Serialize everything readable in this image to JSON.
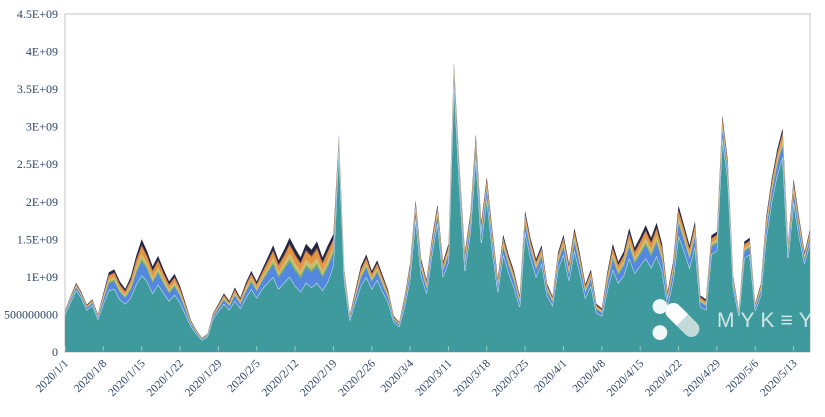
{
  "page": {
    "background": "#ffffff"
  },
  "watermark": {
    "text": "MYKEY",
    "display": "MYK≡Y"
  },
  "chart_data": {
    "type": "area",
    "stacked": true,
    "title": "",
    "xlabel": "",
    "ylabel": "",
    "grid": false,
    "legend": "none",
    "plot_border_color": "#c6c6c6",
    "axis_label_color": "#2e4468",
    "tick_mark_color": "rgba(255,255,255,0.45)",
    "separator_line_color": "rgba(255,255,255,0.85)",
    "y_axis": {
      "min": 0,
      "max": 4500000000,
      "tick_labels": [
        "0",
        "500000000",
        "1E+09",
        "1.5E+09",
        "2E+09",
        "2.5E+09",
        "3E+09",
        "3.5E+09",
        "4E+09",
        "4.5E+09"
      ]
    },
    "x_axis": {
      "tick_labels": [
        "2020/1/1",
        "2020/1/8",
        "2020/1/15",
        "2020/1/22",
        "2020/1/29",
        "2020/2/5",
        "2020/2/12",
        "2020/2/19",
        "2020/2/26",
        "2020/3/4",
        "2020/3/11",
        "2020/3/18",
        "2020/3/25",
        "2020/4/1",
        "2020/4/8",
        "2020/4/15",
        "2020/4/22",
        "2020/4/29",
        "2020/5/6",
        "2020/5/13"
      ],
      "tick_day_indices": [
        0,
        7,
        14,
        21,
        28,
        35,
        42,
        49,
        56,
        63,
        70,
        77,
        84,
        91,
        98,
        105,
        112,
        119,
        126,
        133
      ]
    },
    "values_unit_multiplier": 1000000000,
    "n_points": 137,
    "series": [
      {
        "name": "teal",
        "color": "#3f9a9e",
        "separator_on_top": true,
        "values": [
          0.5,
          0.66,
          0.82,
          0.72,
          0.56,
          0.62,
          0.44,
          0.64,
          0.82,
          0.84,
          0.7,
          0.64,
          0.72,
          0.9,
          1.02,
          0.94,
          0.78,
          0.9,
          0.78,
          0.68,
          0.76,
          0.66,
          0.5,
          0.34,
          0.24,
          0.16,
          0.2,
          0.44,
          0.54,
          0.64,
          0.56,
          0.68,
          0.58,
          0.72,
          0.84,
          0.72,
          0.84,
          0.92,
          1.0,
          0.84,
          0.92,
          1.0,
          0.88,
          0.8,
          0.92,
          0.86,
          0.92,
          0.82,
          0.94,
          1.15,
          2.72,
          0.94,
          0.42,
          0.66,
          0.88,
          1.0,
          0.84,
          0.96,
          0.8,
          0.66,
          0.4,
          0.34,
          0.6,
          0.98,
          1.78,
          1.02,
          0.78,
          1.3,
          1.72,
          1.0,
          1.2,
          3.6,
          2.2,
          1.08,
          1.6,
          2.6,
          1.45,
          2.05,
          1.35,
          0.8,
          1.3,
          1.05,
          0.85,
          0.6,
          1.6,
          1.25,
          1.0,
          1.18,
          0.75,
          0.62,
          1.1,
          1.3,
          0.95,
          1.35,
          1.05,
          0.72,
          0.88,
          0.52,
          0.48,
          0.82,
          1.1,
          0.92,
          1.02,
          1.25,
          1.05,
          1.15,
          1.25,
          1.12,
          1.28,
          1.08,
          0.62,
          0.95,
          1.55,
          1.35,
          1.12,
          1.4,
          0.6,
          0.56,
          1.3,
          1.35,
          2.85,
          2.3,
          0.85,
          0.48,
          1.25,
          1.3,
          0.55,
          0.75,
          1.52,
          2.0,
          2.35,
          2.6,
          1.25,
          2.0,
          1.55,
          1.18,
          1.45
        ]
      },
      {
        "name": "cornflower-blue",
        "color": "#5488df",
        "values": [
          0.02,
          0.032,
          0.04,
          0.032,
          0.028,
          0.032,
          0.024,
          0.056,
          0.096,
          0.104,
          0.096,
          0.08,
          0.112,
          0.152,
          0.192,
          0.16,
          0.144,
          0.152,
          0.128,
          0.104,
          0.112,
          0.088,
          0.06,
          0.032,
          0.02,
          0.012,
          0.016,
          0.028,
          0.04,
          0.056,
          0.048,
          0.072,
          0.056,
          0.08,
          0.096,
          0.088,
          0.104,
          0.136,
          0.168,
          0.152,
          0.176,
          0.208,
          0.2,
          0.184,
          0.208,
          0.2,
          0.22,
          0.176,
          0.192,
          0.168,
          0.072,
          0.056,
          0.032,
          0.064,
          0.104,
          0.12,
          0.096,
          0.104,
          0.088,
          0.064,
          0.032,
          0.024,
          0.056,
          0.08,
          0.096,
          0.088,
          0.072,
          0.088,
          0.096,
          0.08,
          0.096,
          0.1,
          0.112,
          0.1,
          0.1,
          0.12,
          0.112,
          0.112,
          0.112,
          0.072,
          0.104,
          0.096,
          0.088,
          0.06,
          0.112,
          0.104,
          0.096,
          0.096,
          0.064,
          0.048,
          0.088,
          0.104,
          0.088,
          0.12,
          0.104,
          0.072,
          0.088,
          0.048,
          0.04,
          0.096,
          0.136,
          0.112,
          0.128,
          0.16,
          0.136,
          0.152,
          0.176,
          0.16,
          0.176,
          0.144,
          0.072,
          0.1,
          0.16,
          0.136,
          0.12,
          0.136,
          0.06,
          0.056,
          0.1,
          0.1,
          0.12,
          0.1,
          0.06,
          0.032,
          0.088,
          0.088,
          0.04,
          0.06,
          0.112,
          0.12,
          0.136,
          0.152,
          0.08,
          0.12,
          0.1,
          0.06,
          0.072
        ]
      },
      {
        "name": "green",
        "color": "#6fae4b",
        "values": [
          0.004,
          0.006,
          0.007,
          0.006,
          0.005,
          0.006,
          0.004,
          0.01,
          0.017,
          0.018,
          0.017,
          0.014,
          0.02,
          0.027,
          0.034,
          0.028,
          0.025,
          0.027,
          0.022,
          0.018,
          0.02,
          0.015,
          0.011,
          0.006,
          0.004,
          0.002,
          0.003,
          0.005,
          0.007,
          0.01,
          0.008,
          0.013,
          0.01,
          0.014,
          0.017,
          0.015,
          0.018,
          0.024,
          0.029,
          0.027,
          0.031,
          0.036,
          0.035,
          0.032,
          0.036,
          0.035,
          0.039,
          0.031,
          0.034,
          0.029,
          0.013,
          0.01,
          0.006,
          0.011,
          0.018,
          0.021,
          0.017,
          0.018,
          0.015,
          0.011,
          0.006,
          0.004,
          0.01,
          0.014,
          0.017,
          0.015,
          0.013,
          0.015,
          0.017,
          0.014,
          0.017,
          0.018,
          0.02,
          0.018,
          0.018,
          0.021,
          0.02,
          0.02,
          0.02,
          0.013,
          0.018,
          0.017,
          0.015,
          0.011,
          0.02,
          0.018,
          0.017,
          0.017,
          0.011,
          0.008,
          0.015,
          0.018,
          0.015,
          0.021,
          0.018,
          0.013,
          0.015,
          0.008,
          0.007,
          0.017,
          0.024,
          0.02,
          0.022,
          0.028,
          0.024,
          0.027,
          0.031,
          0.028,
          0.031,
          0.025,
          0.013,
          0.018,
          0.028,
          0.024,
          0.021,
          0.024,
          0.011,
          0.01,
          0.018,
          0.018,
          0.021,
          0.018,
          0.011,
          0.006,
          0.015,
          0.015,
          0.007,
          0.011,
          0.02,
          0.021,
          0.024,
          0.027,
          0.014,
          0.021,
          0.018,
          0.011,
          0.013
        ]
      },
      {
        "name": "khaki",
        "color": "#ccbc72",
        "values": [
          0.007,
          0.01,
          0.013,
          0.01,
          0.009,
          0.01,
          0.008,
          0.018,
          0.031,
          0.034,
          0.031,
          0.026,
          0.036,
          0.049,
          0.062,
          0.052,
          0.047,
          0.049,
          0.042,
          0.034,
          0.036,
          0.029,
          0.02,
          0.01,
          0.007,
          0.004,
          0.005,
          0.009,
          0.013,
          0.018,
          0.016,
          0.023,
          0.018,
          0.026,
          0.031,
          0.029,
          0.034,
          0.044,
          0.055,
          0.049,
          0.057,
          0.068,
          0.065,
          0.06,
          0.068,
          0.065,
          0.072,
          0.057,
          0.062,
          0.055,
          0.023,
          0.018,
          0.01,
          0.021,
          0.034,
          0.039,
          0.031,
          0.034,
          0.029,
          0.021,
          0.01,
          0.008,
          0.018,
          0.026,
          0.031,
          0.029,
          0.023,
          0.029,
          0.031,
          0.026,
          0.031,
          0.033,
          0.036,
          0.033,
          0.033,
          0.039,
          0.036,
          0.036,
          0.036,
          0.023,
          0.034,
          0.031,
          0.029,
          0.02,
          0.036,
          0.034,
          0.031,
          0.031,
          0.021,
          0.016,
          0.029,
          0.034,
          0.029,
          0.039,
          0.034,
          0.023,
          0.029,
          0.016,
          0.013,
          0.031,
          0.044,
          0.036,
          0.042,
          0.052,
          0.044,
          0.049,
          0.057,
          0.052,
          0.057,
          0.047,
          0.023,
          0.033,
          0.052,
          0.044,
          0.039,
          0.044,
          0.02,
          0.018,
          0.033,
          0.033,
          0.039,
          0.033,
          0.02,
          0.01,
          0.029,
          0.029,
          0.013,
          0.02,
          0.036,
          0.039,
          0.044,
          0.049,
          0.026,
          0.039,
          0.033,
          0.02,
          0.023
        ]
      },
      {
        "name": "orange",
        "color": "#e39440",
        "values": [
          0.011,
          0.017,
          0.021,
          0.017,
          0.015,
          0.017,
          0.013,
          0.029,
          0.05,
          0.055,
          0.05,
          0.042,
          0.059,
          0.08,
          0.101,
          0.084,
          0.076,
          0.08,
          0.067,
          0.055,
          0.059,
          0.046,
          0.032,
          0.017,
          0.011,
          0.006,
          0.008,
          0.015,
          0.021,
          0.029,
          0.025,
          0.038,
          0.029,
          0.042,
          0.05,
          0.046,
          0.055,
          0.071,
          0.088,
          0.08,
          0.092,
          0.109,
          0.105,
          0.097,
          0.109,
          0.105,
          0.116,
          0.092,
          0.101,
          0.088,
          0.038,
          0.029,
          0.017,
          0.034,
          0.055,
          0.063,
          0.05,
          0.055,
          0.046,
          0.034,
          0.017,
          0.013,
          0.029,
          0.042,
          0.05,
          0.046,
          0.038,
          0.046,
          0.05,
          0.042,
          0.05,
          0.053,
          0.059,
          0.053,
          0.053,
          0.063,
          0.059,
          0.059,
          0.059,
          0.038,
          0.055,
          0.05,
          0.046,
          0.032,
          0.059,
          0.055,
          0.05,
          0.05,
          0.034,
          0.025,
          0.046,
          0.055,
          0.046,
          0.063,
          0.055,
          0.038,
          0.046,
          0.025,
          0.021,
          0.05,
          0.071,
          0.059,
          0.067,
          0.084,
          0.071,
          0.08,
          0.092,
          0.084,
          0.092,
          0.076,
          0.038,
          0.053,
          0.084,
          0.071,
          0.063,
          0.071,
          0.032,
          0.029,
          0.053,
          0.053,
          0.063,
          0.053,
          0.032,
          0.017,
          0.046,
          0.046,
          0.021,
          0.032,
          0.059,
          0.063,
          0.071,
          0.08,
          0.042,
          0.063,
          0.053,
          0.032,
          0.038
        ]
      },
      {
        "name": "maroon",
        "color": "#7e3b3f",
        "values": [
          0.002,
          0.003,
          0.004,
          0.003,
          0.003,
          0.003,
          0.002,
          0.006,
          0.01,
          0.01,
          0.01,
          0.008,
          0.011,
          0.015,
          0.019,
          0.016,
          0.014,
          0.015,
          0.013,
          0.01,
          0.011,
          0.009,
          0.006,
          0.003,
          0.002,
          0.001,
          0.002,
          0.003,
          0.004,
          0.006,
          0.005,
          0.007,
          0.006,
          0.008,
          0.01,
          0.009,
          0.01,
          0.014,
          0.017,
          0.015,
          0.018,
          0.021,
          0.02,
          0.018,
          0.021,
          0.02,
          0.022,
          0.018,
          0.019,
          0.017,
          0.007,
          0.006,
          0.003,
          0.006,
          0.01,
          0.012,
          0.01,
          0.01,
          0.009,
          0.006,
          0.003,
          0.002,
          0.006,
          0.008,
          0.01,
          0.009,
          0.007,
          0.009,
          0.01,
          0.008,
          0.01,
          0.01,
          0.011,
          0.01,
          0.01,
          0.012,
          0.011,
          0.011,
          0.011,
          0.007,
          0.01,
          0.01,
          0.009,
          0.006,
          0.011,
          0.01,
          0.01,
          0.01,
          0.006,
          0.005,
          0.009,
          0.01,
          0.009,
          0.012,
          0.01,
          0.007,
          0.009,
          0.005,
          0.004,
          0.01,
          0.014,
          0.011,
          0.013,
          0.016,
          0.014,
          0.015,
          0.018,
          0.016,
          0.018,
          0.014,
          0.007,
          0.01,
          0.016,
          0.014,
          0.012,
          0.014,
          0.006,
          0.006,
          0.01,
          0.01,
          0.012,
          0.01,
          0.006,
          0.003,
          0.009,
          0.009,
          0.004,
          0.006,
          0.011,
          0.012,
          0.014,
          0.015,
          0.008,
          0.012,
          0.01,
          0.006,
          0.007
        ]
      },
      {
        "name": "dark-navy",
        "color": "#23263e",
        "values": [
          0.008,
          0.012,
          0.015,
          0.012,
          0.011,
          0.012,
          0.009,
          0.021,
          0.036,
          0.039,
          0.036,
          0.03,
          0.042,
          0.057,
          0.072,
          0.06,
          0.054,
          0.057,
          0.048,
          0.039,
          0.042,
          0.033,
          0.023,
          0.012,
          0.008,
          0.005,
          0.006,
          0.011,
          0.015,
          0.021,
          0.018,
          0.027,
          0.021,
          0.03,
          0.036,
          0.033,
          0.039,
          0.051,
          0.063,
          0.057,
          0.066,
          0.078,
          0.075,
          0.069,
          0.078,
          0.075,
          0.083,
          0.066,
          0.072,
          0.063,
          0.027,
          0.021,
          0.012,
          0.024,
          0.039,
          0.045,
          0.036,
          0.039,
          0.033,
          0.024,
          0.012,
          0.009,
          0.021,
          0.03,
          0.036,
          0.033,
          0.027,
          0.033,
          0.036,
          0.03,
          0.036,
          0.038,
          0.042,
          0.038,
          0.038,
          0.045,
          0.042,
          0.042,
          0.042,
          0.027,
          0.039,
          0.036,
          0.033,
          0.023,
          0.042,
          0.039,
          0.036,
          0.036,
          0.024,
          0.018,
          0.033,
          0.039,
          0.033,
          0.045,
          0.039,
          0.027,
          0.033,
          0.018,
          0.015,
          0.036,
          0.051,
          0.042,
          0.048,
          0.06,
          0.051,
          0.057,
          0.066,
          0.06,
          0.066,
          0.054,
          0.027,
          0.038,
          0.06,
          0.051,
          0.045,
          0.051,
          0.023,
          0.021,
          0.038,
          0.038,
          0.045,
          0.038,
          0.023,
          0.012,
          0.033,
          0.033,
          0.015,
          0.023,
          0.042,
          0.045,
          0.051,
          0.057,
          0.03,
          0.045,
          0.038,
          0.023,
          0.027
        ]
      }
    ]
  }
}
